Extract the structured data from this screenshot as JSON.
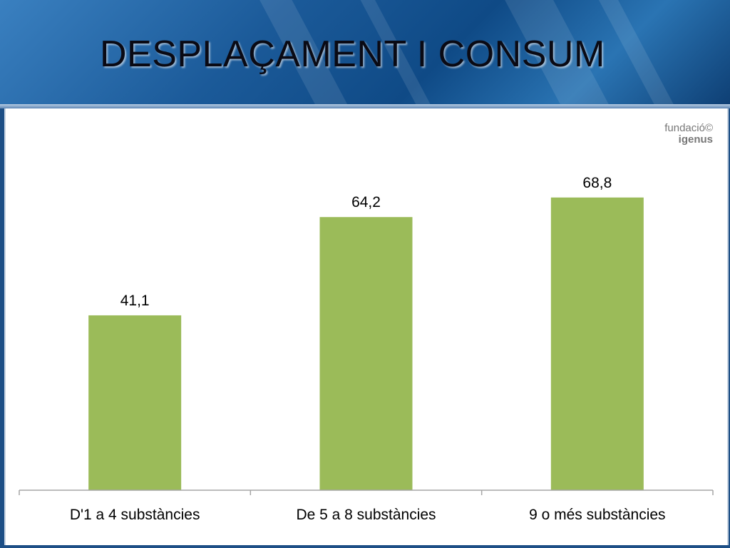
{
  "slide": {
    "title": "DESPLAÇAMENT I CONSUM",
    "logo_line1": "fundació©",
    "logo_line2": "igenus"
  },
  "colors": {
    "bar": "#9bbb59",
    "axis": "#a6a6a6",
    "header": "#1b5a99"
  },
  "chart_data": {
    "type": "bar",
    "categories": [
      "D'1 a 4 substàncies",
      "De 5 a 8 substàncies",
      "9 o més substàncies"
    ],
    "values": [
      41.1,
      64.2,
      68.8
    ],
    "data_labels": [
      "41,1",
      "64,2",
      "68,8"
    ],
    "title": "",
    "xlabel": "",
    "ylabel": "",
    "ylim": [
      0,
      80
    ],
    "grid": false,
    "legend": "none"
  }
}
